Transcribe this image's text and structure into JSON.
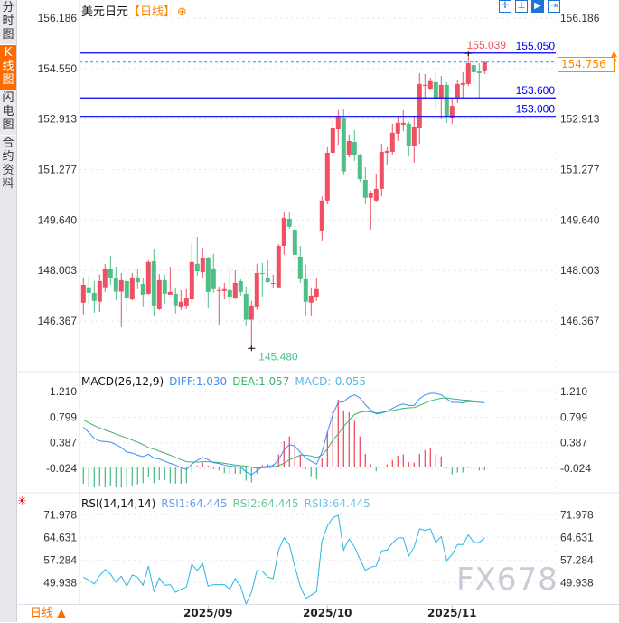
{
  "sidebar": {
    "tabs": [
      {
        "label": "分时图",
        "active": false
      },
      {
        "label": "K线图",
        "active": true
      },
      {
        "label": "闪电图",
        "active": false
      },
      {
        "label": "合约资料",
        "active": false
      }
    ]
  },
  "header": {
    "symbol": "美元日元",
    "period": "【日线】",
    "add_icon": "⊕"
  },
  "toolbar": {
    "icons": [
      "crosshair-icon",
      "range-icon",
      "chart-mode-icon",
      "scroll-right-icon"
    ]
  },
  "macd_legend": {
    "name": "MACD(26,12,9)",
    "diff": "DIFF:1.030",
    "dea": "DEA:1.057",
    "macd": "MACD:-0.055"
  },
  "rsi_legend": {
    "name": "RSI(14,14,14)",
    "rsi1": "RSI1:64.445",
    "rsi2": "RSI2:64.445",
    "rsi3": "RSI3:64.445"
  },
  "bottom": {
    "period_button": "日线 ▲"
  },
  "watermark": "FX678",
  "colors": {
    "up": "#ef5064",
    "down": "#4fbf88",
    "level_line": "#0000ff",
    "current_line": "#1e90ff",
    "accent": "#ff8a00",
    "diff": "#3d8ef5",
    "dea": "#3cb371",
    "rsi": "#2bb5e8"
  },
  "chart_data": [
    {
      "type": "candlestick",
      "yticks": [
        "156.186",
        "154.550",
        "152.913",
        "151.277",
        "149.640",
        "148.003",
        "146.367"
      ],
      "ylim": [
        145.2,
        156.6
      ],
      "xticks": [
        {
          "label": "2025/09",
          "index": 23
        },
        {
          "label": "2025/10",
          "index": 45
        },
        {
          "label": "2025/11",
          "index": 68
        }
      ],
      "ohlc_order": [
        "open",
        "high",
        "low",
        "close"
      ],
      "candles": [
        [
          146.96,
          147.78,
          146.58,
          147.54
        ],
        [
          147.46,
          147.84,
          146.93,
          147.28
        ],
        [
          147.28,
          147.66,
          146.63,
          147.02
        ],
        [
          146.99,
          147.87,
          146.66,
          147.66
        ],
        [
          147.46,
          148.22,
          147.31,
          148.07
        ],
        [
          148.07,
          148.48,
          147.54,
          147.76
        ],
        [
          147.75,
          148.13,
          147.04,
          147.32
        ],
        [
          147.32,
          147.92,
          146.17,
          147.69
        ],
        [
          147.66,
          147.81,
          146.69,
          147.1
        ],
        [
          147.07,
          147.92,
          147.04,
          147.78
        ],
        [
          147.78,
          148.07,
          147.4,
          147.62
        ],
        [
          147.57,
          147.78,
          146.84,
          147.22
        ],
        [
          147.25,
          148.36,
          147.22,
          148.28
        ],
        [
          148.3,
          148.71,
          146.52,
          146.87
        ],
        [
          146.75,
          147.89,
          146.72,
          147.69
        ],
        [
          147.69,
          147.87,
          146.93,
          147.25
        ],
        [
          147.22,
          148.13,
          147.22,
          147.31
        ],
        [
          147.25,
          147.46,
          146.61,
          146.87
        ],
        [
          146.81,
          147.37,
          146.72,
          146.99
        ],
        [
          146.87,
          147.4,
          146.75,
          147.1
        ],
        [
          147.07,
          148.89,
          146.99,
          148.28
        ],
        [
          148.22,
          149.1,
          147.84,
          147.98
        ],
        [
          147.95,
          148.74,
          147.75,
          148.42
        ],
        [
          148.42,
          148.45,
          146.78,
          147.31
        ],
        [
          148.07,
          148.54,
          147.28,
          147.4
        ],
        [
          147.37,
          147.48,
          146.25,
          147.37
        ],
        [
          147.34,
          147.6,
          147.07,
          147.4
        ],
        [
          147.37,
          148.13,
          146.93,
          147.13
        ],
        [
          147.1,
          148.01,
          147.07,
          147.6
        ],
        [
          147.66,
          147.72,
          147.19,
          147.31
        ],
        [
          147.25,
          147.48,
          146.23,
          146.41
        ],
        [
          146.41,
          147.02,
          145.48,
          146.87
        ],
        [
          146.84,
          148.22,
          146.73,
          147.92
        ],
        [
          147.92,
          148.25,
          147.16,
          147.89
        ],
        [
          147.75,
          148.33,
          147.6,
          147.63
        ],
        [
          147.6,
          147.87,
          147.43,
          147.6
        ],
        [
          147.46,
          148.86,
          147.46,
          148.8
        ],
        [
          148.8,
          149.89,
          148.51,
          149.71
        ],
        [
          149.68,
          149.92,
          149.36,
          149.42
        ],
        [
          149.33,
          149.48,
          148.42,
          148.51
        ],
        [
          148.45,
          148.8,
          147.6,
          147.72
        ],
        [
          147.72,
          148.19,
          146.55,
          146.99
        ],
        [
          146.96,
          147.46,
          146.55,
          147.19
        ],
        [
          147.13,
          147.78,
          147.02,
          147.4
        ],
        [
          149.3,
          150.41,
          148.95,
          150.27
        ],
        [
          150.27,
          152.0,
          150.15,
          151.82
        ],
        [
          151.82,
          152.93,
          151.7,
          152.61
        ],
        [
          152.58,
          153.2,
          152.08,
          152.99
        ],
        [
          152.93,
          153.23,
          151.12,
          151.21
        ],
        [
          151.76,
          152.41,
          151.67,
          152.2
        ],
        [
          152.17,
          152.55,
          151.56,
          151.76
        ],
        [
          151.76,
          151.79,
          150.88,
          150.97
        ],
        [
          150.94,
          151.35,
          150.15,
          150.36
        ],
        [
          150.36,
          150.59,
          149.33,
          150.53
        ],
        [
          150.27,
          151.15,
          150.24,
          150.65
        ],
        [
          150.65,
          152.11,
          150.41,
          151.85
        ],
        [
          151.82,
          152.0,
          151.44,
          151.88
        ],
        [
          151.85,
          152.76,
          151.76,
          152.47
        ],
        [
          152.44,
          153.02,
          152.2,
          152.79
        ],
        [
          152.73,
          153.2,
          152.52,
          152.79
        ],
        [
          152.76,
          152.82,
          151.7,
          152.03
        ],
        [
          152.03,
          153.02,
          151.5,
          152.64
        ],
        [
          152.61,
          154.4,
          152.11,
          154.05
        ],
        [
          154.02,
          154.37,
          153.61,
          154.02
        ],
        [
          153.9,
          154.25,
          153.87,
          154.14
        ],
        [
          154.11,
          154.43,
          153.26,
          153.58
        ],
        [
          153.58,
          154.31,
          152.9,
          154.02
        ],
        [
          154.02,
          154.11,
          152.79,
          152.99
        ],
        [
          152.96,
          153.58,
          152.76,
          153.34
        ],
        [
          153.61,
          154.19,
          153.43,
          154.05
        ],
        [
          154.02,
          154.43,
          153.61,
          154.08
        ],
        [
          154.05,
          155.039,
          153.99,
          154.72
        ],
        [
          154.66,
          154.96,
          154.08,
          154.43
        ],
        [
          154.46,
          154.72,
          153.58,
          154.4
        ],
        [
          154.46,
          154.78,
          154.37,
          154.756
        ]
      ],
      "high_label": "155.039",
      "low_label": "145.480",
      "current_price": "154.756",
      "current_value": 154.756,
      "levels": [
        {
          "value": 155.05,
          "label": "155.050"
        },
        {
          "value": 153.6,
          "label": "153.600"
        },
        {
          "value": 153.0,
          "label": "153.000"
        }
      ]
    },
    {
      "type": "macd",
      "yticks": [
        "1.210",
        "0.799",
        "0.387",
        "-0.024"
      ],
      "series": [
        {
          "name": "DIFF",
          "values": [
            0.639,
            0.552,
            0.455,
            0.416,
            0.407,
            0.397,
            0.358,
            0.31,
            0.237,
            0.223,
            0.189,
            0.165,
            0.204,
            0.141,
            0.126,
            0.092,
            0.058,
            0.03,
            -0.014,
            -0.043,
            0.044,
            0.107,
            0.15,
            0.117,
            0.068,
            0.054,
            0.03,
            0.01,
            0.005,
            -0.004,
            -0.077,
            -0.125,
            -0.062,
            -0.004,
            0.01,
            0.02,
            0.117,
            0.271,
            0.358,
            0.334,
            0.237,
            0.141,
            0.092,
            0.044,
            0.237,
            0.552,
            0.842,
            1.036,
            1.045,
            1.123,
            1.157,
            1.108,
            0.997,
            0.915,
            0.852,
            0.866,
            0.891,
            0.939,
            0.987,
            1.011,
            0.987,
            0.987,
            1.094,
            1.157,
            1.181,
            1.181,
            1.157,
            1.094,
            1.036,
            1.036,
            1.026,
            1.05,
            1.045,
            1.036,
            1.03
          ]
        },
        {
          "name": "DEA",
          "values": [
            0.755,
            0.707,
            0.663,
            0.625,
            0.591,
            0.562,
            0.528,
            0.494,
            0.465,
            0.431,
            0.397,
            0.358,
            0.31,
            0.286,
            0.252,
            0.223,
            0.189,
            0.15,
            0.117,
            0.083,
            0.078,
            0.078,
            0.083,
            0.083,
            0.078,
            0.068,
            0.058,
            0.044,
            0.03,
            0.02,
            0.01,
            -0.004,
            -0.019,
            -0.014,
            -0.009,
            -0.004,
            0.02,
            0.058,
            0.116,
            0.15,
            0.189,
            0.189,
            0.175,
            0.15,
            0.189,
            0.286,
            0.431,
            0.528,
            0.649,
            0.745,
            0.842,
            0.876,
            0.891,
            0.881,
            0.866,
            0.876,
            0.891,
            0.905,
            0.924,
            0.939,
            0.949,
            0.953,
            0.987,
            1.026,
            1.06,
            1.084,
            1.103,
            1.108,
            1.094,
            1.084,
            1.074,
            1.07,
            1.06,
            1.055,
            1.057
          ]
        },
        {
          "name": "MACD",
          "values": [
            -0.27,
            -0.33,
            -0.33,
            -0.3,
            -0.33,
            -0.3,
            -0.33,
            -0.33,
            -0.33,
            -0.3,
            -0.28,
            -0.26,
            -0.16,
            -0.26,
            -0.21,
            -0.21,
            -0.26,
            -0.27,
            -0.27,
            -0.26,
            -0.08,
            0.02,
            0.07,
            0.02,
            -0.04,
            -0.06,
            -0.1,
            -0.11,
            -0.11,
            -0.11,
            -0.22,
            -0.25,
            -0.11,
            0.03,
            0.04,
            0.04,
            0.2,
            0.41,
            0.49,
            0.38,
            0.2,
            -0.04,
            -0.15,
            -0.2,
            0.15,
            0.56,
            0.89,
            1.08,
            0.91,
            0.88,
            0.74,
            0.49,
            0.21,
            0.04,
            -0.07,
            -0.01,
            0.04,
            0.11,
            0.18,
            0.2,
            0.08,
            0.07,
            0.21,
            0.27,
            0.3,
            0.2,
            0.17,
            -0.02,
            -0.12,
            -0.09,
            -0.09,
            -0.02,
            -0.03,
            -0.06,
            -0.055
          ]
        }
      ]
    },
    {
      "type": "line",
      "yticks": [
        "71.978",
        "64.631",
        "57.284",
        "49.938"
      ],
      "series": [
        {
          "name": "RSI1",
          "values": [
            51.7,
            50.72,
            49.45,
            52.19,
            54.15,
            52.68,
            50.04,
            52.0,
            48.76,
            52.39,
            51.7,
            49.06,
            55.33,
            47.09,
            51.41,
            49.06,
            49.25,
            46.8,
            47.78,
            48.47,
            55.91,
            53.86,
            56.11,
            48.76,
            49.25,
            49.25,
            49.25,
            47.78,
            51.21,
            48.76,
            42.88,
            46.8,
            53.86,
            53.66,
            51.7,
            51.21,
            60.52,
            64.53,
            62.18,
            55.13,
            48.76,
            44.84,
            45.82,
            47.0,
            63.46,
            68.35,
            71.0,
            71.78,
            60.52,
            64.14,
            61.5,
            57.58,
            53.95,
            54.93,
            55.33,
            60.22,
            60.52,
            62.77,
            64.44,
            64.44,
            58.56,
            61.5,
            67.37,
            66.89,
            67.37,
            62.97,
            64.93,
            57.09,
            59.05,
            62.28,
            62.28,
            65.41,
            62.97,
            62.97,
            64.445
          ]
        }
      ]
    }
  ]
}
